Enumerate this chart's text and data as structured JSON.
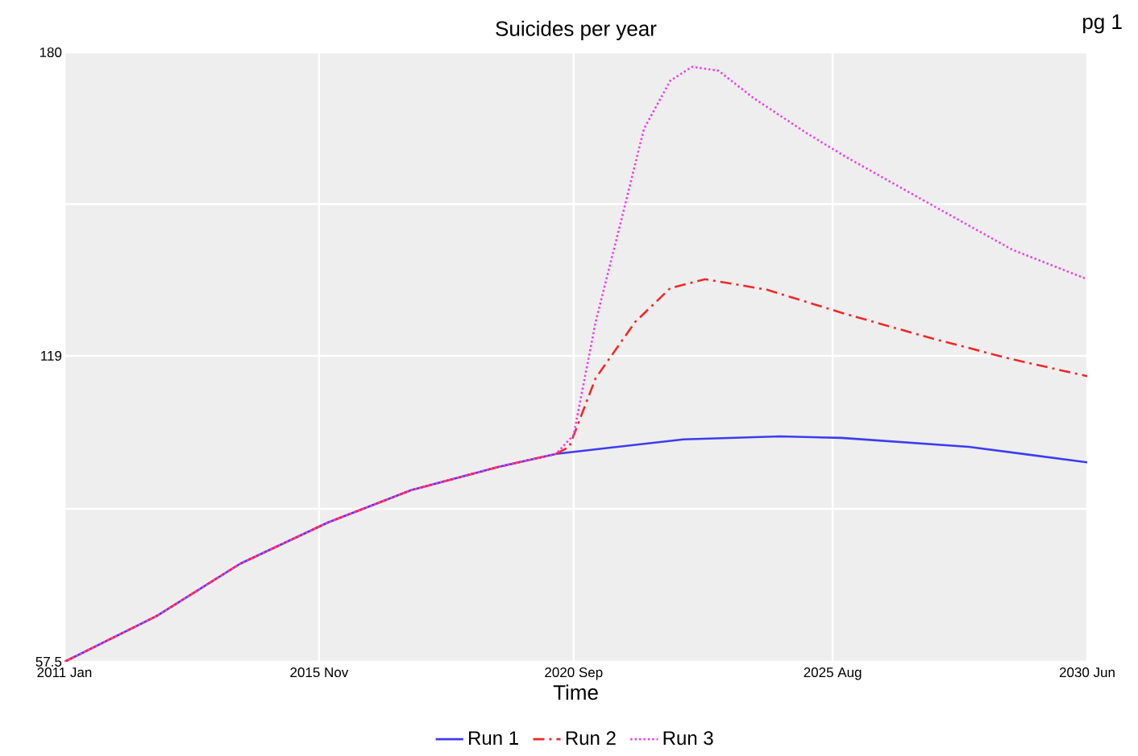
{
  "chart_data": {
    "type": "line",
    "title": "Suicides per year",
    "xlabel": "Time",
    "annotations": [
      "pg 1"
    ],
    "xlim": [
      "2011-01",
      "2030-06"
    ],
    "xticks": [
      {
        "value": "2011-01",
        "label": "2011 Jan"
      },
      {
        "value": "2015-11",
        "label": "2015 Nov"
      },
      {
        "value": "2020-09",
        "label": "2020 Sep"
      },
      {
        "value": "2025-08",
        "label": "2025 Aug"
      },
      {
        "value": "2030-06",
        "label": "2030 Jun"
      }
    ],
    "ylim": [
      57.5,
      180
    ],
    "yticks": [
      57.5,
      {
        "value": 88.25,
        "label": null
      },
      119,
      {
        "value": 149.5,
        "label": null
      },
      180
    ],
    "grid": true,
    "legend": "bottom",
    "series": [
      {
        "name": "Run 1",
        "color": "#3c3cf0",
        "line_style": "solid",
        "x": [
          "2011-01",
          "2012-10",
          "2014-05",
          "2016-01",
          "2017-08",
          "2019-04",
          "2020-05",
          "2020-11",
          "2022-10",
          "2024-08",
          "2025-10",
          "2028-03",
          "2030-06"
        ],
        "values": [
          57.5,
          66.7,
          77.2,
          85.5,
          92.0,
          96.7,
          99.3,
          99.9,
          102.2,
          102.8,
          102.5,
          100.7,
          97.6
        ]
      },
      {
        "name": "Run 2",
        "color": "#f02828",
        "line_style": "dashed",
        "x": [
          "2011-01",
          "2012-10",
          "2014-05",
          "2016-01",
          "2017-08",
          "2019-04",
          "2020-05",
          "2020-08",
          "2021-02",
          "2021-11",
          "2022-07",
          "2023-03",
          "2024-05",
          "2025-11",
          "2027-05",
          "2028-12",
          "2030-06"
        ],
        "values": [
          57.5,
          66.7,
          77.2,
          85.5,
          92.0,
          96.7,
          99.3,
          100.7,
          114.5,
          125.8,
          132.6,
          134.4,
          132.3,
          127.4,
          122.9,
          118.5,
          114.9
        ]
      },
      {
        "name": "Run 3",
        "color": "#f03cf0",
        "line_style": "dotted",
        "x": [
          "2011-01",
          "2012-10",
          "2014-05",
          "2016-01",
          "2017-08",
          "2019-04",
          "2020-05",
          "2020-09",
          "2021-02",
          "2021-08",
          "2022-01",
          "2022-07",
          "2022-12",
          "2023-06",
          "2024-02",
          "2025-02",
          "2025-11",
          "2027-05",
          "2029-01",
          "2030-06"
        ],
        "values": [
          57.5,
          66.7,
          77.2,
          85.5,
          92.0,
          96.7,
          99.3,
          103.1,
          125.8,
          146.8,
          164.6,
          174.3,
          177.1,
          176.3,
          170.8,
          163.8,
          159.0,
          150.1,
          140.3,
          134.4
        ]
      }
    ]
  }
}
